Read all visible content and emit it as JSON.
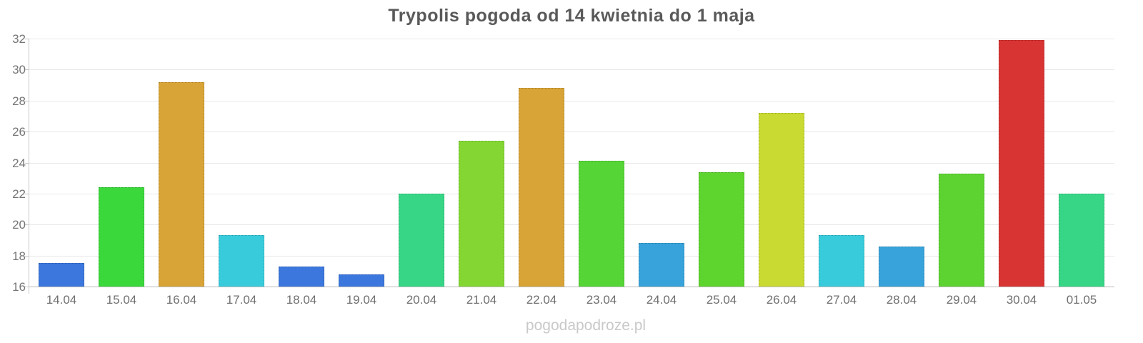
{
  "title": "Trypolis pogoda od 14 kwietnia do 1 maja",
  "watermark": "pogodapodroze.pl",
  "chart_data": {
    "type": "bar",
    "title": "Trypolis pogoda od 14 kwietnia do 1 maja",
    "xlabel": "",
    "ylabel": "",
    "ylim": [
      16,
      32
    ],
    "yticks": [
      16,
      18,
      20,
      22,
      24,
      26,
      28,
      30,
      32
    ],
    "grid": "horizontal",
    "legend": "none",
    "categories": [
      "14.04",
      "15.04",
      "16.04",
      "17.04",
      "18.04",
      "19.04",
      "20.04",
      "21.04",
      "22.04",
      "23.04",
      "24.04",
      "25.04",
      "26.04",
      "27.04",
      "28.04",
      "29.04",
      "30.04",
      "01.05"
    ],
    "values": [
      17.5,
      22.4,
      29.2,
      19.3,
      17.3,
      16.8,
      22.0,
      25.4,
      28.8,
      24.1,
      18.8,
      23.4,
      27.2,
      19.3,
      18.6,
      23.3,
      31.9,
      22.0
    ],
    "bar_colors": [
      "#3b77dd",
      "#3bd83b",
      "#d9a437",
      "#38cbdb",
      "#3b77dd",
      "#3b77dd",
      "#37d687",
      "#84d733",
      "#d9a437",
      "#55d636",
      "#38a3da",
      "#5ed42e",
      "#c9da32",
      "#38cbdb",
      "#38a3da",
      "#5cd331",
      "#d93434",
      "#37d687"
    ]
  },
  "colors": {
    "title": "#595959",
    "axis_label": "#757575",
    "x_label": "#6f6f6f",
    "gridline": "#e8e8e8",
    "axis_line": "#c9c9c9",
    "watermark": "#c9c9c9",
    "background": "#ffffff"
  }
}
